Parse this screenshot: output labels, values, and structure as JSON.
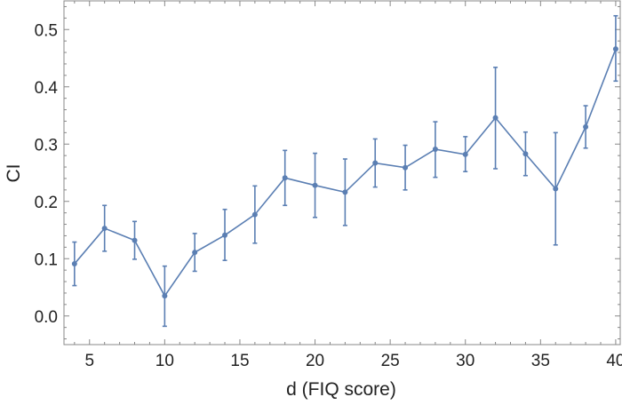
{
  "chart_data": {
    "type": "line",
    "xlabel": "d (FIQ score)",
    "ylabel": "CI",
    "xlim": [
      3.3,
      40.3
    ],
    "ylim": [
      -0.05,
      0.55
    ],
    "x_ticks": [
      5,
      10,
      15,
      20,
      25,
      30,
      35,
      40
    ],
    "y_ticks": [
      0.0,
      0.1,
      0.2,
      0.3,
      0.4,
      0.5
    ],
    "x_tick_labels": [
      "5",
      "10",
      "15",
      "20",
      "25",
      "30",
      "35",
      "40"
    ],
    "y_tick_labels": [
      "0.0",
      "0.1",
      "0.2",
      "0.3",
      "0.4",
      "0.5"
    ],
    "grid": false,
    "color": "#5b7fb3",
    "series": [
      {
        "x": [
          4,
          6,
          8,
          10,
          12,
          14,
          16,
          18,
          20,
          22,
          24,
          26,
          28,
          30,
          32,
          34,
          36,
          38,
          40
        ],
        "y": [
          0.091,
          0.153,
          0.132,
          0.035,
          0.111,
          0.141,
          0.177,
          0.241,
          0.228,
          0.216,
          0.267,
          0.259,
          0.291,
          0.282,
          0.346,
          0.283,
          0.222,
          0.33,
          0.466
        ],
        "err_low": [
          0.053,
          0.113,
          0.099,
          -0.018,
          0.078,
          0.097,
          0.127,
          0.193,
          0.172,
          0.158,
          0.225,
          0.22,
          0.242,
          0.252,
          0.257,
          0.245,
          0.124,
          0.293,
          0.41
        ],
        "err_high": [
          0.129,
          0.193,
          0.165,
          0.087,
          0.144,
          0.186,
          0.227,
          0.289,
          0.284,
          0.274,
          0.309,
          0.298,
          0.339,
          0.313,
          0.434,
          0.321,
          0.32,
          0.367,
          0.524
        ]
      }
    ]
  }
}
